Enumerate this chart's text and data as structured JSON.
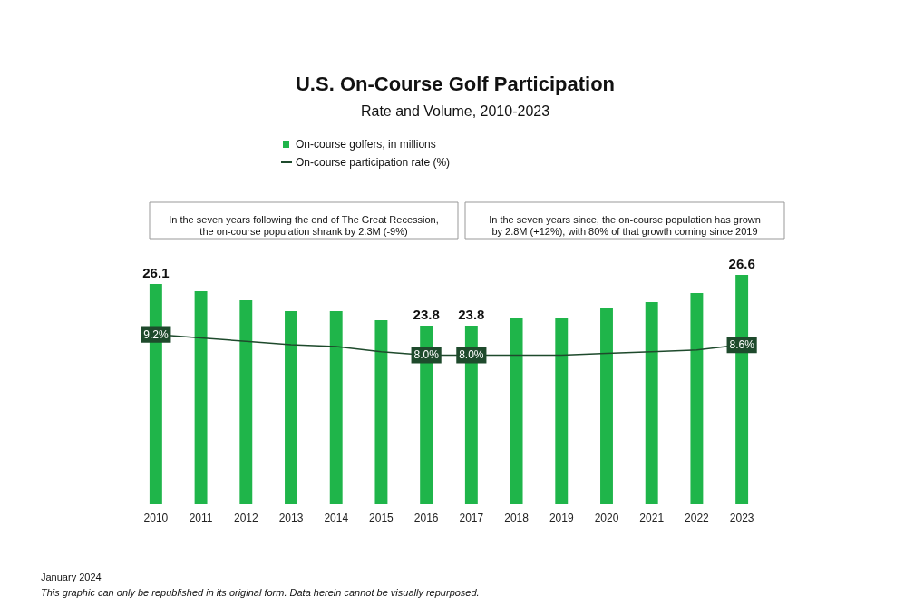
{
  "chart_data": {
    "type": "bar",
    "title": "U.S. On-Course Golf Participation",
    "subtitle": "Rate and Volume, 2010-2023",
    "categories": [
      "2010",
      "2011",
      "2012",
      "2013",
      "2014",
      "2015",
      "2016",
      "2017",
      "2018",
      "2019",
      "2020",
      "2021",
      "2022",
      "2023"
    ],
    "series": [
      {
        "name": "On-course golfers, in millions",
        "color": "#1fb54a",
        "values": [
          26.1,
          25.7,
          25.2,
          24.6,
          24.6,
          24.1,
          23.8,
          23.8,
          24.2,
          24.2,
          24.8,
          25.1,
          25.6,
          26.6
        ],
        "value_labels": [
          "26.1",
          null,
          null,
          null,
          null,
          null,
          "23.8",
          "23.8",
          null,
          null,
          null,
          null,
          null,
          "26.6"
        ]
      },
      {
        "name": "On-course participation rate (%)",
        "type": "line",
        "axis": "y2",
        "color": "#1e4a2c",
        "values": [
          9.2,
          9.0,
          8.8,
          8.6,
          8.5,
          8.2,
          8.0,
          8.0,
          8.0,
          8.0,
          8.1,
          8.2,
          8.3,
          8.6
        ],
        "value_labels": [
          "9.2%",
          null,
          null,
          null,
          null,
          null,
          "8.0%",
          "8.0%",
          null,
          null,
          null,
          null,
          null,
          "8.6%"
        ]
      }
    ],
    "tick_labels": "x",
    "legend": "top",
    "annotations": [
      "In the seven years following the end of The Great Recession,\nthe on-course population shrank by 2.3M (-9%)",
      "In the seven years since, the on-course population has grown\nby 2.8M (+12%), with 80% of that growth coming since 2019",
      "January 2024",
      "This graphic can only be republished in its original form. Data herein cannot be visually repurposed."
    ]
  }
}
